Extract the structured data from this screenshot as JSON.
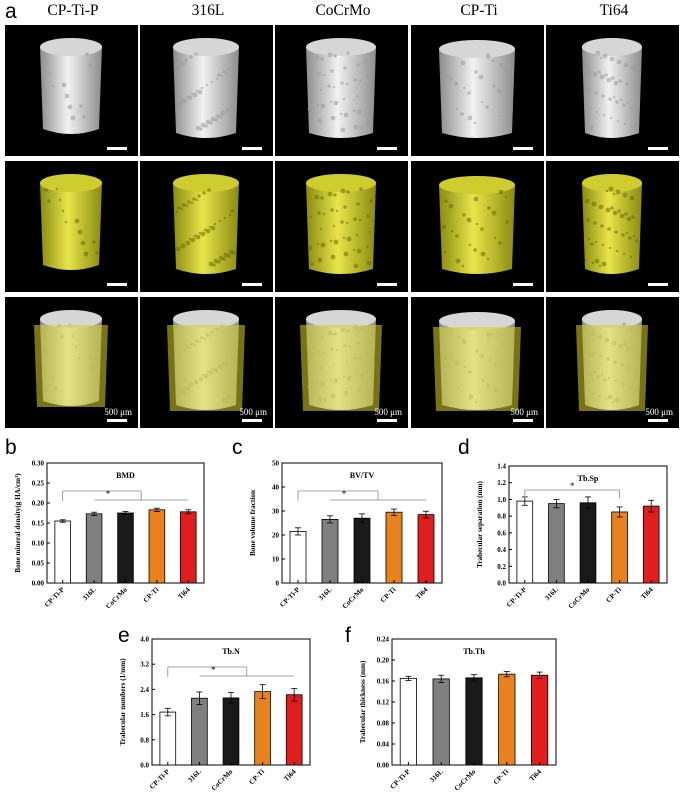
{
  "panel_labels": {
    "a": "a",
    "b": "b",
    "c": "c",
    "d": "d",
    "e": "e",
    "f": "f"
  },
  "columns": [
    "CP-Ti-P",
    "316L",
    "CoCrMo",
    "CP-Ti",
    "Ti64"
  ],
  "scale_label": "500 μm",
  "colors": {
    "CP-Ti-P": "#ffffff",
    "316L": "#808080",
    "CoCrMo": "#1a1a1a",
    "CP-Ti": "#e8821e",
    "Ti64": "#e01e1e"
  },
  "chart_data": [
    {
      "id": "b",
      "type": "bar",
      "title": "BMD",
      "ylabel": "Bone mineral density(g HA/cm³)",
      "categories": [
        "CP-Ti-P",
        "316L",
        "CoCrMo",
        "CP-Ti",
        "Ti64"
      ],
      "values": [
        0.155,
        0.173,
        0.175,
        0.183,
        0.178
      ],
      "errors": [
        0.003,
        0.004,
        0.004,
        0.004,
        0.005
      ],
      "ylim": [
        0,
        0.3
      ],
      "yticks": [
        "0.00",
        "0.05",
        "0.10",
        "0.15",
        "0.20",
        "0.25",
        "0.30"
      ],
      "sig": "*"
    },
    {
      "id": "c",
      "type": "bar",
      "title": "BV/TV",
      "ylabel": "Bone volume fraction",
      "categories": [
        "CP-Ti-P",
        "316L",
        "CoCrMo",
        "CP-Ti",
        "Ti64"
      ],
      "values": [
        21.5,
        26.5,
        27,
        29.5,
        28.5
      ],
      "errors": [
        1.5,
        1.5,
        1.8,
        1.3,
        1.4
      ],
      "ylim": [
        0,
        50
      ],
      "yticks": [
        "0",
        "10",
        "20",
        "30",
        "40",
        "50"
      ],
      "sig": "*"
    },
    {
      "id": "d",
      "type": "bar",
      "title": "Tb.Sp",
      "ylabel": "Trabecular separation (mm)",
      "categories": [
        "CP-Ti-P",
        "316L",
        "CoCrMo",
        "CP-Ti",
        "Ti64"
      ],
      "values": [
        0.98,
        0.95,
        0.96,
        0.85,
        0.92
      ],
      "errors": [
        0.05,
        0.05,
        0.07,
        0.06,
        0.07
      ],
      "ylim": [
        0,
        1.4
      ],
      "yticks": [
        "0.0",
        "0.2",
        "0.4",
        "0.6",
        "0.8",
        "1.0",
        "1.2",
        "1.4"
      ],
      "sig": "*"
    },
    {
      "id": "e",
      "type": "bar",
      "title": "Tb.N",
      "ylabel": "Trabecular numbers (1/mm)",
      "categories": [
        "CP-Ti-P",
        "316L",
        "CoCrMo",
        "CP-Ti",
        "Ti64"
      ],
      "values": [
        1.68,
        2.12,
        2.13,
        2.33,
        2.23
      ],
      "errors": [
        0.12,
        0.2,
        0.17,
        0.22,
        0.2
      ],
      "ylim": [
        0,
        4.0
      ],
      "yticks": [
        "0.0",
        "0.8",
        "1.6",
        "2.4",
        "3.2",
        "4.0"
      ],
      "sig": "*"
    },
    {
      "id": "f",
      "type": "bar",
      "title": "Tb.Th",
      "ylabel": "Trabecular thickness (mm)",
      "categories": [
        "CP-Ti-P",
        "316L",
        "CoCrMo",
        "CP-Ti",
        "Ti64"
      ],
      "values": [
        0.165,
        0.164,
        0.166,
        0.173,
        0.171
      ],
      "errors": [
        0.004,
        0.007,
        0.006,
        0.005,
        0.006
      ],
      "ylim": [
        0,
        0.24
      ],
      "yticks": [
        "0.00",
        "0.04",
        "0.08",
        "0.12",
        "0.16",
        "0.20",
        "0.24"
      ],
      "sig": ""
    }
  ]
}
